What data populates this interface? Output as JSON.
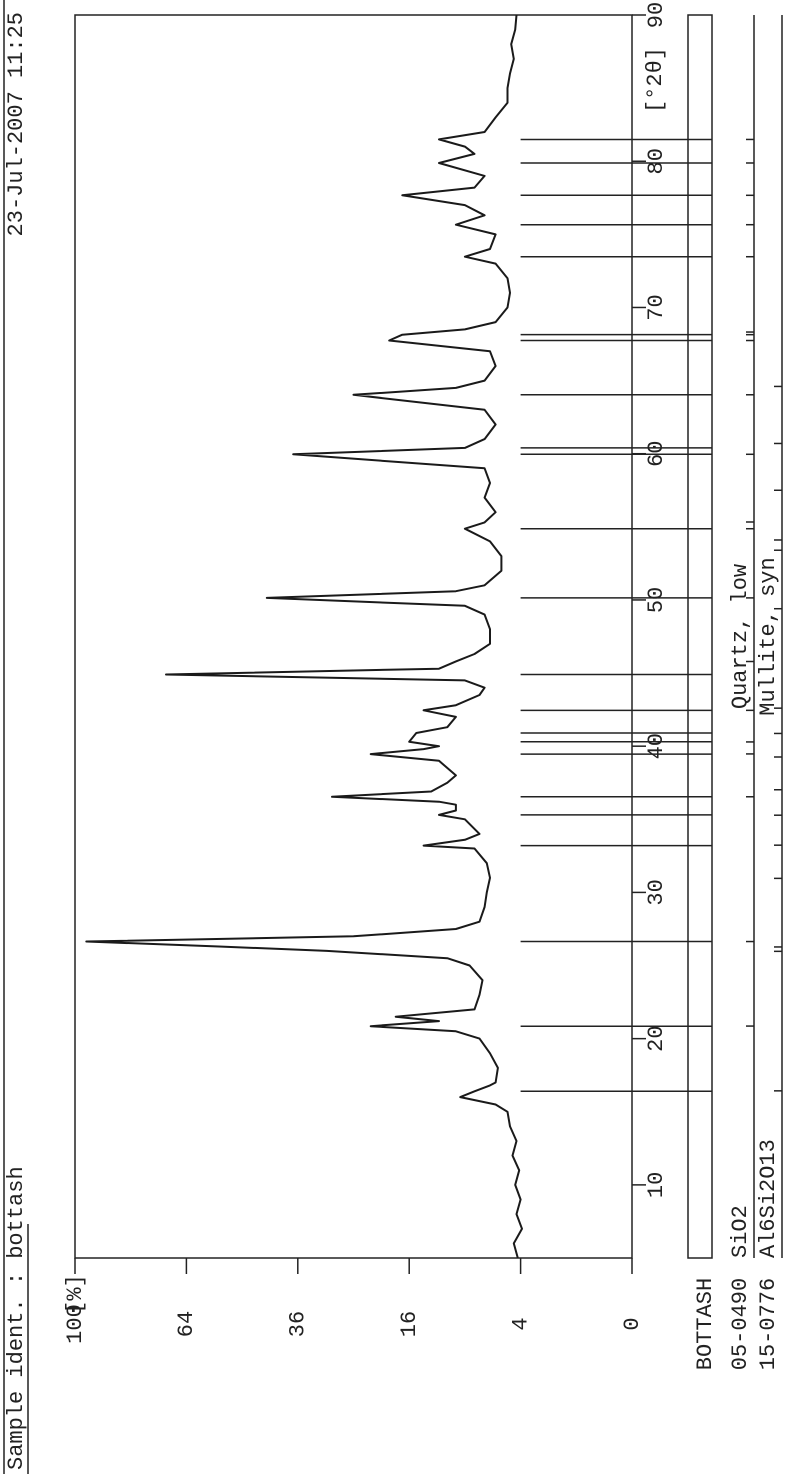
{
  "chart_data": {
    "type": "line",
    "title": "Sample ident. : bottash",
    "date": "23-Jul-2007 11:25",
    "y_label": "[%]",
    "x_unit_label": "[°2θ]",
    "yscale": "sqrt",
    "xlim": [
      5,
      90
    ],
    "xticks": [
      10,
      20,
      30,
      40,
      50,
      60,
      70,
      80,
      90
    ],
    "ylim": [
      0,
      100
    ],
    "yticks": [
      0,
      4,
      16,
      36,
      64,
      100
    ],
    "x": [
      5,
      6,
      7,
      8,
      9,
      10,
      11,
      12,
      13,
      14,
      15,
      15.5,
      16,
      16.4,
      16.8,
      17,
      18,
      19,
      20,
      20.5,
      20.85,
      21.2,
      21.5,
      22,
      23,
      24,
      25,
      25.5,
      26,
      26.3,
      26.64,
      27,
      27.5,
      28,
      29,
      30,
      31,
      32,
      33,
      33.2,
      33.6,
      34,
      35,
      35.3,
      35.6,
      36,
      36.2,
      36.54,
      36.9,
      37.5,
      38,
      39,
      39.46,
      39.8,
      40,
      40.3,
      40.9,
      41.3,
      42,
      42.45,
      42.8,
      43.5,
      44,
      44.5,
      44.9,
      45.3,
      45.8,
      46.3,
      47,
      48,
      49,
      49.6,
      50.14,
      50.6,
      51,
      52,
      53,
      54,
      54.87,
      55.3,
      56,
      57,
      58,
      59,
      59.96,
      60.4,
      61,
      62,
      63,
      64.03,
      64.5,
      65,
      66,
      67,
      67.74,
      68.14,
      68.5,
      69,
      70,
      71,
      72,
      73,
      73.47,
      74,
      75,
      75.66,
      76.3,
      77,
      77.67,
      78.2,
      79,
      79.88,
      80.5,
      81,
      81.49,
      82,
      83,
      84,
      85,
      86,
      87,
      88,
      89,
      90
    ],
    "series": [
      {
        "name": "BOTTASH",
        "color": "#1a1a1a",
        "values": [
          4.2,
          4.5,
          3.9,
          4.3,
          4.0,
          4.4,
          4.1,
          4.6,
          4.3,
          4.8,
          5.0,
          6.0,
          9.5,
          8.0,
          6.5,
          6.0,
          5.8,
          6.5,
          7.5,
          10,
          22,
          12,
          18,
          8,
          7.5,
          7.2,
          8.5,
          11,
          30,
          55,
          96,
          25,
          10,
          7.5,
          7,
          6.8,
          6.5,
          6.8,
          8,
          14,
          9,
          7.5,
          9,
          12,
          10,
          10,
          12,
          29,
          13,
          11,
          10,
          12,
          22,
          14,
          12,
          16,
          15,
          11,
          10,
          14,
          10,
          7.5,
          7,
          9,
          70,
          12,
          10,
          8,
          6.5,
          6.5,
          7,
          9,
          43,
          10,
          7,
          5.5,
          5.5,
          6.5,
          9,
          7,
          6,
          7,
          6.5,
          7,
          37,
          9,
          7,
          6,
          7,
          25,
          10,
          7,
          6,
          6.5,
          19,
          17,
          9,
          6,
          5,
          4.8,
          5,
          6,
          9,
          6.5,
          6,
          10,
          7,
          9,
          17,
          8,
          7,
          12,
          8,
          9,
          12,
          7,
          6,
          5,
          5,
          4.8,
          4.5,
          4.7,
          4.4,
          4.3
        ]
      }
    ],
    "peak_markers": [
      16.4,
      20.85,
      26.64,
      33.2,
      35.3,
      36.54,
      39.46,
      40.3,
      40.9,
      42.45,
      44.9,
      50.14,
      54.87,
      59.96,
      60.4,
      64.03,
      67.74,
      68.14,
      73.47,
      75.66,
      77.67,
      79.88,
      81.49
    ],
    "phases": [
      {
        "code": "05-0490",
        "formula": "SiO2",
        "name": "Quartz, low",
        "positions": [
          20.86,
          26.64,
          36.54,
          39.47,
          40.29,
          42.45,
          45.79,
          50.14,
          54.87,
          55.33,
          59.96,
          64.03,
          67.74,
          68.14,
          68.32,
          73.47,
          75.66,
          77.67,
          79.88,
          81.49
        ]
      },
      {
        "code": "15-0776",
        "formula": "Al6Si2O13",
        "name": "Mullite, syn",
        "positions": [
          16.43,
          25.97,
          26.27,
          30.96,
          33.23,
          35.28,
          37.02,
          39.26,
          40.87,
          42.6,
          49.4,
          53.4,
          54.1,
          57.5,
          60.7,
          64.6
        ]
      }
    ]
  }
}
